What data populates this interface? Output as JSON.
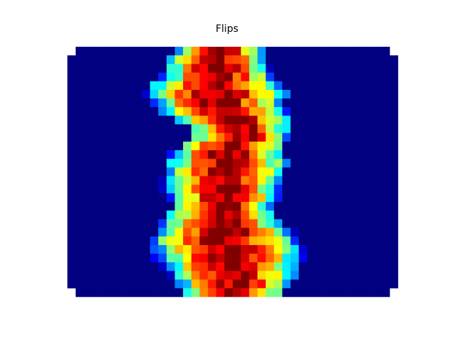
{
  "chart_data": {
    "type": "heatmap",
    "title": "Flips",
    "xlabel": "",
    "ylabel": "",
    "colormap": "jet",
    "vmin": 0,
    "vmax": 1,
    "axes_visible": false,
    "grid": false,
    "rows": 29,
    "cols": 40,
    "band": [
      {
        "start": 12.8,
        "end": 24.4
      },
      {
        "start": 11.3,
        "end": 24.9
      },
      {
        "start": 11.1,
        "end": 25.0
      },
      {
        "start": 11.0,
        "end": 25.5
      },
      {
        "start": 9.5,
        "end": 26.5
      },
      {
        "start": 8.7,
        "end": 27.6
      },
      {
        "start": 9.5,
        "end": 27.3
      },
      {
        "start": 10.6,
        "end": 27.3
      },
      {
        "start": 12.3,
        "end": 27.6
      },
      {
        "start": 13.9,
        "end": 27.4
      },
      {
        "start": 14.1,
        "end": 27.3
      },
      {
        "start": 12.8,
        "end": 27.2
      },
      {
        "start": 11.8,
        "end": 27.0
      },
      {
        "start": 11.2,
        "end": 27.4
      },
      {
        "start": 11.2,
        "end": 27.0
      },
      {
        "start": 11.1,
        "end": 26.6
      },
      {
        "start": 11.4,
        "end": 26.4
      },
      {
        "start": 11.8,
        "end": 26.4
      },
      {
        "start": 11.8,
        "end": 25.8
      },
      {
        "start": 11.5,
        "end": 26.0
      },
      {
        "start": 10.8,
        "end": 26.7
      },
      {
        "start": 9.9,
        "end": 28.0
      },
      {
        "start": 9.0,
        "end": 28.6
      },
      {
        "start": 9.5,
        "end": 29.0
      },
      {
        "start": 10.2,
        "end": 29.0
      },
      {
        "start": 10.9,
        "end": 28.6
      },
      {
        "start": 11.7,
        "end": 28.4
      },
      {
        "start": 12.7,
        "end": 28.0
      },
      {
        "start": 13.6,
        "end": 27.0
      }
    ]
  }
}
